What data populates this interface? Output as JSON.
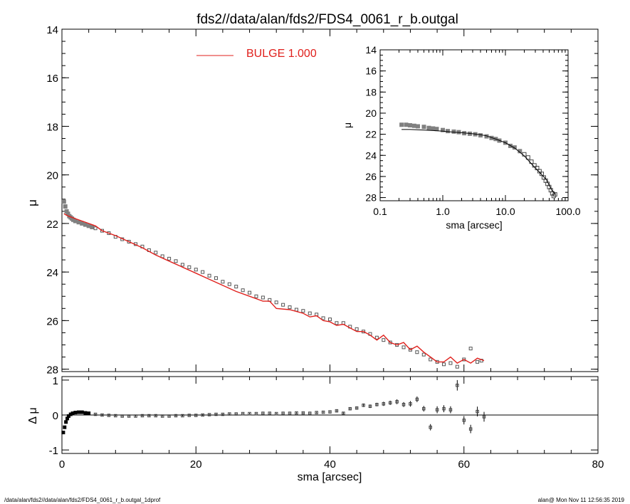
{
  "title": "fds2//data/alan/fds2/FDS4_0061_r_b.outgal",
  "legend": {
    "label": "BULGE  1.000",
    "color": "#e0201c"
  },
  "footer": {
    "left": "/data/alan/fds2//data/alan/fds2/FDS4_0061_r_b.outgal_1dprof",
    "right": "alan@  Mon Nov 11 12:56:35 2019"
  },
  "colors": {
    "data": "#808080",
    "model": "#e0201c",
    "axis": "#000000",
    "residual": "#000000"
  },
  "chart_data": [
    {
      "id": "main",
      "type": "scatter",
      "xlabel": "",
      "ylabel": "μ",
      "xlim": [
        0,
        80
      ],
      "ylim": [
        28.1,
        14
      ],
      "x_ticks": [
        0,
        20,
        40,
        60,
        80
      ],
      "y_ticks": [
        14,
        16,
        18,
        20,
        22,
        24,
        26,
        28
      ],
      "y_tick_labels": [
        "14",
        "16",
        "18",
        "20",
        "22",
        "24",
        "26",
        "28"
      ],
      "y_minor_step": 0.5,
      "x_minor_step": 4,
      "legend_position": "top-center",
      "series": [
        {
          "name": "BULGE  1.000",
          "kind": "line",
          "x": [
            0.3,
            1,
            2,
            3,
            4,
            5,
            6,
            8,
            10,
            12,
            14,
            16,
            18,
            20,
            22,
            24,
            26,
            28,
            30,
            31,
            32,
            34,
            36,
            37,
            38,
            39,
            40,
            41,
            42,
            43,
            44,
            45,
            46,
            47,
            48,
            49,
            50,
            51,
            52,
            53,
            54,
            55,
            56,
            57,
            58,
            59,
            60,
            61,
            62,
            63
          ],
          "y": [
            21.6,
            21.7,
            21.8,
            21.9,
            22.0,
            22.1,
            22.3,
            22.5,
            22.75,
            23.0,
            23.3,
            23.55,
            23.8,
            24.05,
            24.3,
            24.55,
            24.8,
            25.0,
            25.2,
            25.2,
            25.5,
            25.55,
            25.7,
            25.85,
            25.8,
            26.0,
            26.05,
            26.2,
            26.15,
            26.3,
            26.45,
            26.45,
            26.6,
            26.8,
            26.6,
            26.9,
            27.0,
            26.9,
            27.2,
            27.05,
            27.3,
            27.5,
            27.7,
            27.7,
            27.5,
            27.75,
            27.6,
            27.75,
            27.55,
            27.65
          ]
        },
        {
          "name": "",
          "kind": "points",
          "x": [
            0.3,
            0.5,
            0.7,
            0.9,
            1.1,
            1.3,
            1.5,
            1.7,
            2,
            2.5,
            3,
            3.5,
            4,
            4.5,
            5,
            6,
            7,
            8,
            9,
            10,
            11,
            12,
            13,
            14,
            15,
            16,
            17,
            18,
            19,
            20,
            21,
            22,
            23,
            24,
            25,
            26,
            27,
            28,
            29,
            30,
            31,
            32,
            33,
            34,
            35,
            36,
            37,
            38,
            39,
            40,
            41,
            42,
            43,
            44,
            45,
            46,
            47,
            48,
            49,
            50,
            51,
            52,
            53,
            54,
            55,
            56,
            57,
            58,
            59,
            60,
            61,
            62,
            62.6
          ],
          "y": [
            21.1,
            21.3,
            21.5,
            21.6,
            21.7,
            21.75,
            21.8,
            21.85,
            21.9,
            21.95,
            22.0,
            22.05,
            22.1,
            22.15,
            22.2,
            22.3,
            22.4,
            22.55,
            22.65,
            22.75,
            22.85,
            22.95,
            23.1,
            23.2,
            23.35,
            23.45,
            23.55,
            23.7,
            23.8,
            23.9,
            24.0,
            24.15,
            24.25,
            24.4,
            24.5,
            24.6,
            24.75,
            24.85,
            25.0,
            25.05,
            25.15,
            25.25,
            25.35,
            25.45,
            25.55,
            25.6,
            25.7,
            25.75,
            25.9,
            25.95,
            26.1,
            26.1,
            26.25,
            26.35,
            26.45,
            26.55,
            26.7,
            26.8,
            26.9,
            27.0,
            27.1,
            27.2,
            27.3,
            27.4,
            27.6,
            27.7,
            27.8,
            27.75,
            27.9,
            27.6,
            27.15,
            27.7,
            27.65
          ]
        }
      ]
    },
    {
      "id": "residual",
      "type": "scatter",
      "xlabel": "sma [arcsec]",
      "ylabel": "Δ μ",
      "xlim": [
        0,
        80
      ],
      "ylim": [
        -1.1,
        1.1
      ],
      "x_ticks": [
        0,
        20,
        40,
        60,
        80
      ],
      "x_tick_labels": [
        "0",
        "20",
        "40",
        "60",
        "80"
      ],
      "y_ticks": [
        -1,
        0,
        1
      ],
      "y_tick_labels": [
        "-1",
        "0",
        "1"
      ],
      "zero_line": true,
      "series": [
        {
          "name": "",
          "kind": "points",
          "x": [
            0.2,
            0.4,
            0.6,
            0.8,
            1.0,
            1.3,
            1.6,
            2.0,
            2.5,
            3.0,
            3.5,
            4.0,
            5,
            6,
            7,
            8,
            9,
            10,
            11,
            12,
            13,
            14,
            15,
            16,
            17,
            18,
            19,
            20,
            21,
            22,
            23,
            24,
            25,
            26,
            27,
            28,
            29,
            30,
            31,
            32,
            33,
            34,
            35,
            36,
            37,
            38,
            39,
            40,
            41,
            42,
            43,
            44,
            45,
            46,
            47,
            48,
            49,
            50,
            51,
            52,
            53,
            54,
            55,
            56,
            57,
            58,
            59,
            60,
            61,
            62,
            63
          ],
          "y": [
            -0.5,
            -0.35,
            -0.2,
            -0.1,
            -0.03,
            0.02,
            0.05,
            0.07,
            0.08,
            0.08,
            0.06,
            0.05,
            0.02,
            0.0,
            -0.01,
            -0.02,
            -0.03,
            -0.03,
            -0.03,
            -0.02,
            -0.02,
            -0.02,
            -0.03,
            -0.03,
            -0.02,
            -0.02,
            -0.01,
            -0.01,
            0.0,
            0.01,
            0.02,
            0.02,
            0.03,
            0.03,
            0.04,
            0.04,
            0.04,
            0.05,
            0.05,
            0.04,
            0.05,
            0.05,
            0.06,
            0.06,
            0.05,
            0.07,
            0.08,
            0.09,
            0.12,
            0.05,
            0.18,
            0.2,
            0.28,
            0.25,
            0.3,
            0.32,
            0.35,
            0.38,
            0.3,
            0.32,
            0.45,
            0.18,
            -0.35,
            0.15,
            0.18,
            0.15,
            0.85,
            -0.15,
            -0.4,
            0.1,
            -0.05
          ],
          "err": [
            0.02,
            0.02,
            0.02,
            0.02,
            0.02,
            0.02,
            0.02,
            0.02,
            0.02,
            0.02,
            0.02,
            0.02,
            0.02,
            0.02,
            0.02,
            0.02,
            0.02,
            0.02,
            0.02,
            0.02,
            0.02,
            0.02,
            0.02,
            0.02,
            0.02,
            0.02,
            0.02,
            0.02,
            0.02,
            0.02,
            0.02,
            0.02,
            0.02,
            0.02,
            0.02,
            0.02,
            0.02,
            0.02,
            0.02,
            0.02,
            0.02,
            0.02,
            0.02,
            0.02,
            0.02,
            0.02,
            0.02,
            0.02,
            0.03,
            0.03,
            0.04,
            0.04,
            0.05,
            0.05,
            0.05,
            0.06,
            0.06,
            0.07,
            0.07,
            0.08,
            0.08,
            0.08,
            0.09,
            0.1,
            0.1,
            0.1,
            0.15,
            0.12,
            0.12,
            0.14,
            0.14
          ]
        }
      ]
    },
    {
      "id": "inset",
      "type": "scatter",
      "xlabel": "sma [arcsec]",
      "ylabel": "μ",
      "xscale": "log",
      "xlim": [
        0.1,
        100
      ],
      "ylim": [
        28.3,
        14
      ],
      "x_ticks": [
        0.1,
        1,
        10,
        100
      ],
      "x_tick_labels": [
        "0.1",
        "1.0",
        "10.0",
        "100.0"
      ],
      "y_ticks": [
        14,
        16,
        18,
        20,
        22,
        24,
        26,
        28
      ],
      "y_tick_labels": [
        "14",
        "16",
        "18",
        "20",
        "22",
        "24",
        "26",
        "28"
      ],
      "series": [
        {
          "name": "",
          "kind": "line",
          "x": [
            0.22,
            0.3,
            0.5,
            0.7,
            1.0,
            1.5,
            2,
            3,
            4,
            5,
            7,
            10,
            14,
            20,
            28,
            35,
            45,
            55,
            63
          ],
          "y": [
            21.55,
            21.55,
            21.6,
            21.65,
            21.7,
            21.8,
            21.85,
            21.95,
            22.05,
            22.15,
            22.45,
            22.8,
            23.3,
            24.05,
            25.0,
            25.6,
            26.3,
            27.3,
            27.65
          ]
        },
        {
          "name": "",
          "kind": "points",
          "x": [
            0.22,
            0.26,
            0.3,
            0.35,
            0.4,
            0.5,
            0.6,
            0.7,
            0.8,
            1.0,
            1.2,
            1.5,
            1.8,
            2.2,
            2.7,
            3.3,
            4,
            5,
            6,
            7,
            8,
            10,
            12,
            14,
            17,
            20,
            23,
            26,
            29,
            32,
            35,
            38,
            41,
            44,
            47,
            50,
            53,
            56,
            59,
            62
          ],
          "y": [
            21.1,
            21.1,
            21.15,
            21.2,
            21.25,
            21.3,
            21.4,
            21.45,
            21.5,
            21.6,
            21.7,
            21.75,
            21.8,
            21.9,
            21.95,
            22.0,
            22.1,
            22.2,
            22.35,
            22.45,
            22.6,
            22.8,
            23.1,
            23.25,
            23.6,
            23.9,
            24.2,
            24.6,
            24.95,
            25.2,
            25.5,
            25.75,
            26.1,
            26.4,
            26.7,
            27.0,
            27.3,
            27.6,
            27.85,
            27.7
          ]
        }
      ]
    }
  ]
}
